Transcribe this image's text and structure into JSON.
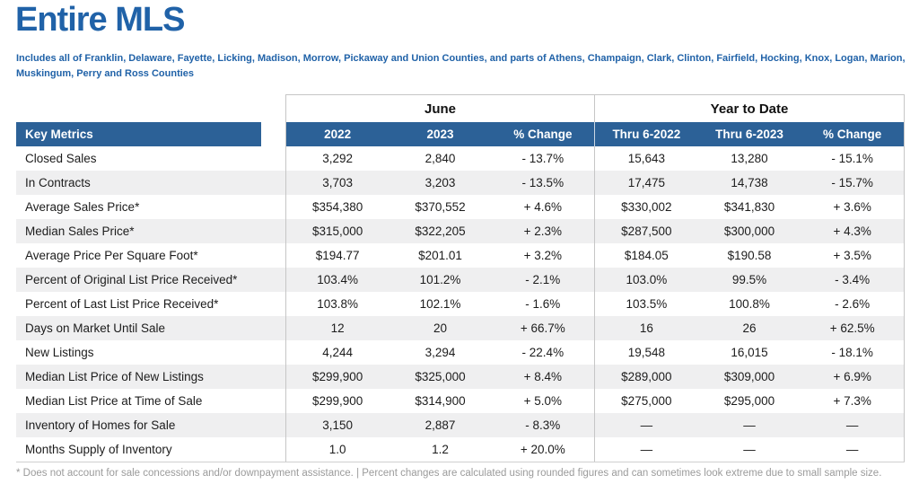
{
  "page": {
    "title": "Entire MLS",
    "subtitle": "Includes all of Franklin, Delaware, Fayette, Licking, Madison, Morrow, Pickaway and Union Counties, and parts of Athens, Champaign, Clark, Clinton, Fairfield, Hocking, Knox, Logan, Marion, Muskingum, Perry and Ross Counties",
    "footnote": "* Does not account for sale concessions and/or downpayment assistance. | Percent changes are calculated using rounded figures and can sometimes look extreme due to small sample size."
  },
  "table": {
    "group_headers": {
      "june": "June",
      "ytd": "Year to Date"
    },
    "columns": {
      "key_metrics": "Key Metrics",
      "june": [
        "2022",
        "2023",
        "% Change"
      ],
      "ytd": [
        "Thru 6-2022",
        "Thru 6-2023",
        "% Change"
      ]
    },
    "rows": [
      {
        "metric": "Closed Sales",
        "june": [
          "3,292",
          "2,840",
          "- 13.7%"
        ],
        "ytd": [
          "15,643",
          "13,280",
          "- 15.1%"
        ]
      },
      {
        "metric": "In Contracts",
        "june": [
          "3,703",
          "3,203",
          "- 13.5%"
        ],
        "ytd": [
          "17,475",
          "14,738",
          "- 15.7%"
        ]
      },
      {
        "metric": "Average Sales Price*",
        "june": [
          "$354,380",
          "$370,552",
          "+ 4.6%"
        ],
        "ytd": [
          "$330,002",
          "$341,830",
          "+ 3.6%"
        ]
      },
      {
        "metric": "Median Sales Price*",
        "june": [
          "$315,000",
          "$322,205",
          "+ 2.3%"
        ],
        "ytd": [
          "$287,500",
          "$300,000",
          "+ 4.3%"
        ]
      },
      {
        "metric": "Average Price Per Square Foot*",
        "june": [
          "$194.77",
          "$201.01",
          "+ 3.2%"
        ],
        "ytd": [
          "$184.05",
          "$190.58",
          "+ 3.5%"
        ]
      },
      {
        "metric": "Percent of Original List Price Received*",
        "june": [
          "103.4%",
          "101.2%",
          "- 2.1%"
        ],
        "ytd": [
          "103.0%",
          "99.5%",
          "- 3.4%"
        ]
      },
      {
        "metric": "Percent of Last List Price Received*",
        "june": [
          "103.8%",
          "102.1%",
          "- 1.6%"
        ],
        "ytd": [
          "103.5%",
          "100.8%",
          "- 2.6%"
        ]
      },
      {
        "metric": "Days on Market Until Sale",
        "june": [
          "12",
          "20",
          "+ 66.7%"
        ],
        "ytd": [
          "16",
          "26",
          "+ 62.5%"
        ]
      },
      {
        "metric": "New Listings",
        "june": [
          "4,244",
          "3,294",
          "- 22.4%"
        ],
        "ytd": [
          "19,548",
          "16,015",
          "- 18.1%"
        ]
      },
      {
        "metric": "Median List Price of New Listings",
        "june": [
          "$299,900",
          "$325,000",
          "+ 8.4%"
        ],
        "ytd": [
          "$289,000",
          "$309,000",
          "+ 6.9%"
        ]
      },
      {
        "metric": "Median List Price at Time of Sale",
        "june": [
          "$299,900",
          "$314,900",
          "+ 5.0%"
        ],
        "ytd": [
          "$275,000",
          "$295,000",
          "+ 7.3%"
        ]
      },
      {
        "metric": "Inventory of Homes for Sale",
        "june": [
          "3,150",
          "2,887",
          "- 8.3%"
        ],
        "ytd": [
          "—",
          "—",
          "—"
        ]
      },
      {
        "metric": "Months Supply of Inventory",
        "june": [
          "1.0",
          "1.2",
          "+ 20.0%"
        ],
        "ytd": [
          "—",
          "—",
          "—"
        ]
      }
    ]
  },
  "colors": {
    "title_blue": "#2062a8",
    "header_blue": "#2c6197",
    "header_divider": "#ccd8e4",
    "stripe": "#efeff0",
    "border": "#c6c6c6",
    "text": "#1c1c1c",
    "footnote_gray": "#9b9b9b"
  }
}
